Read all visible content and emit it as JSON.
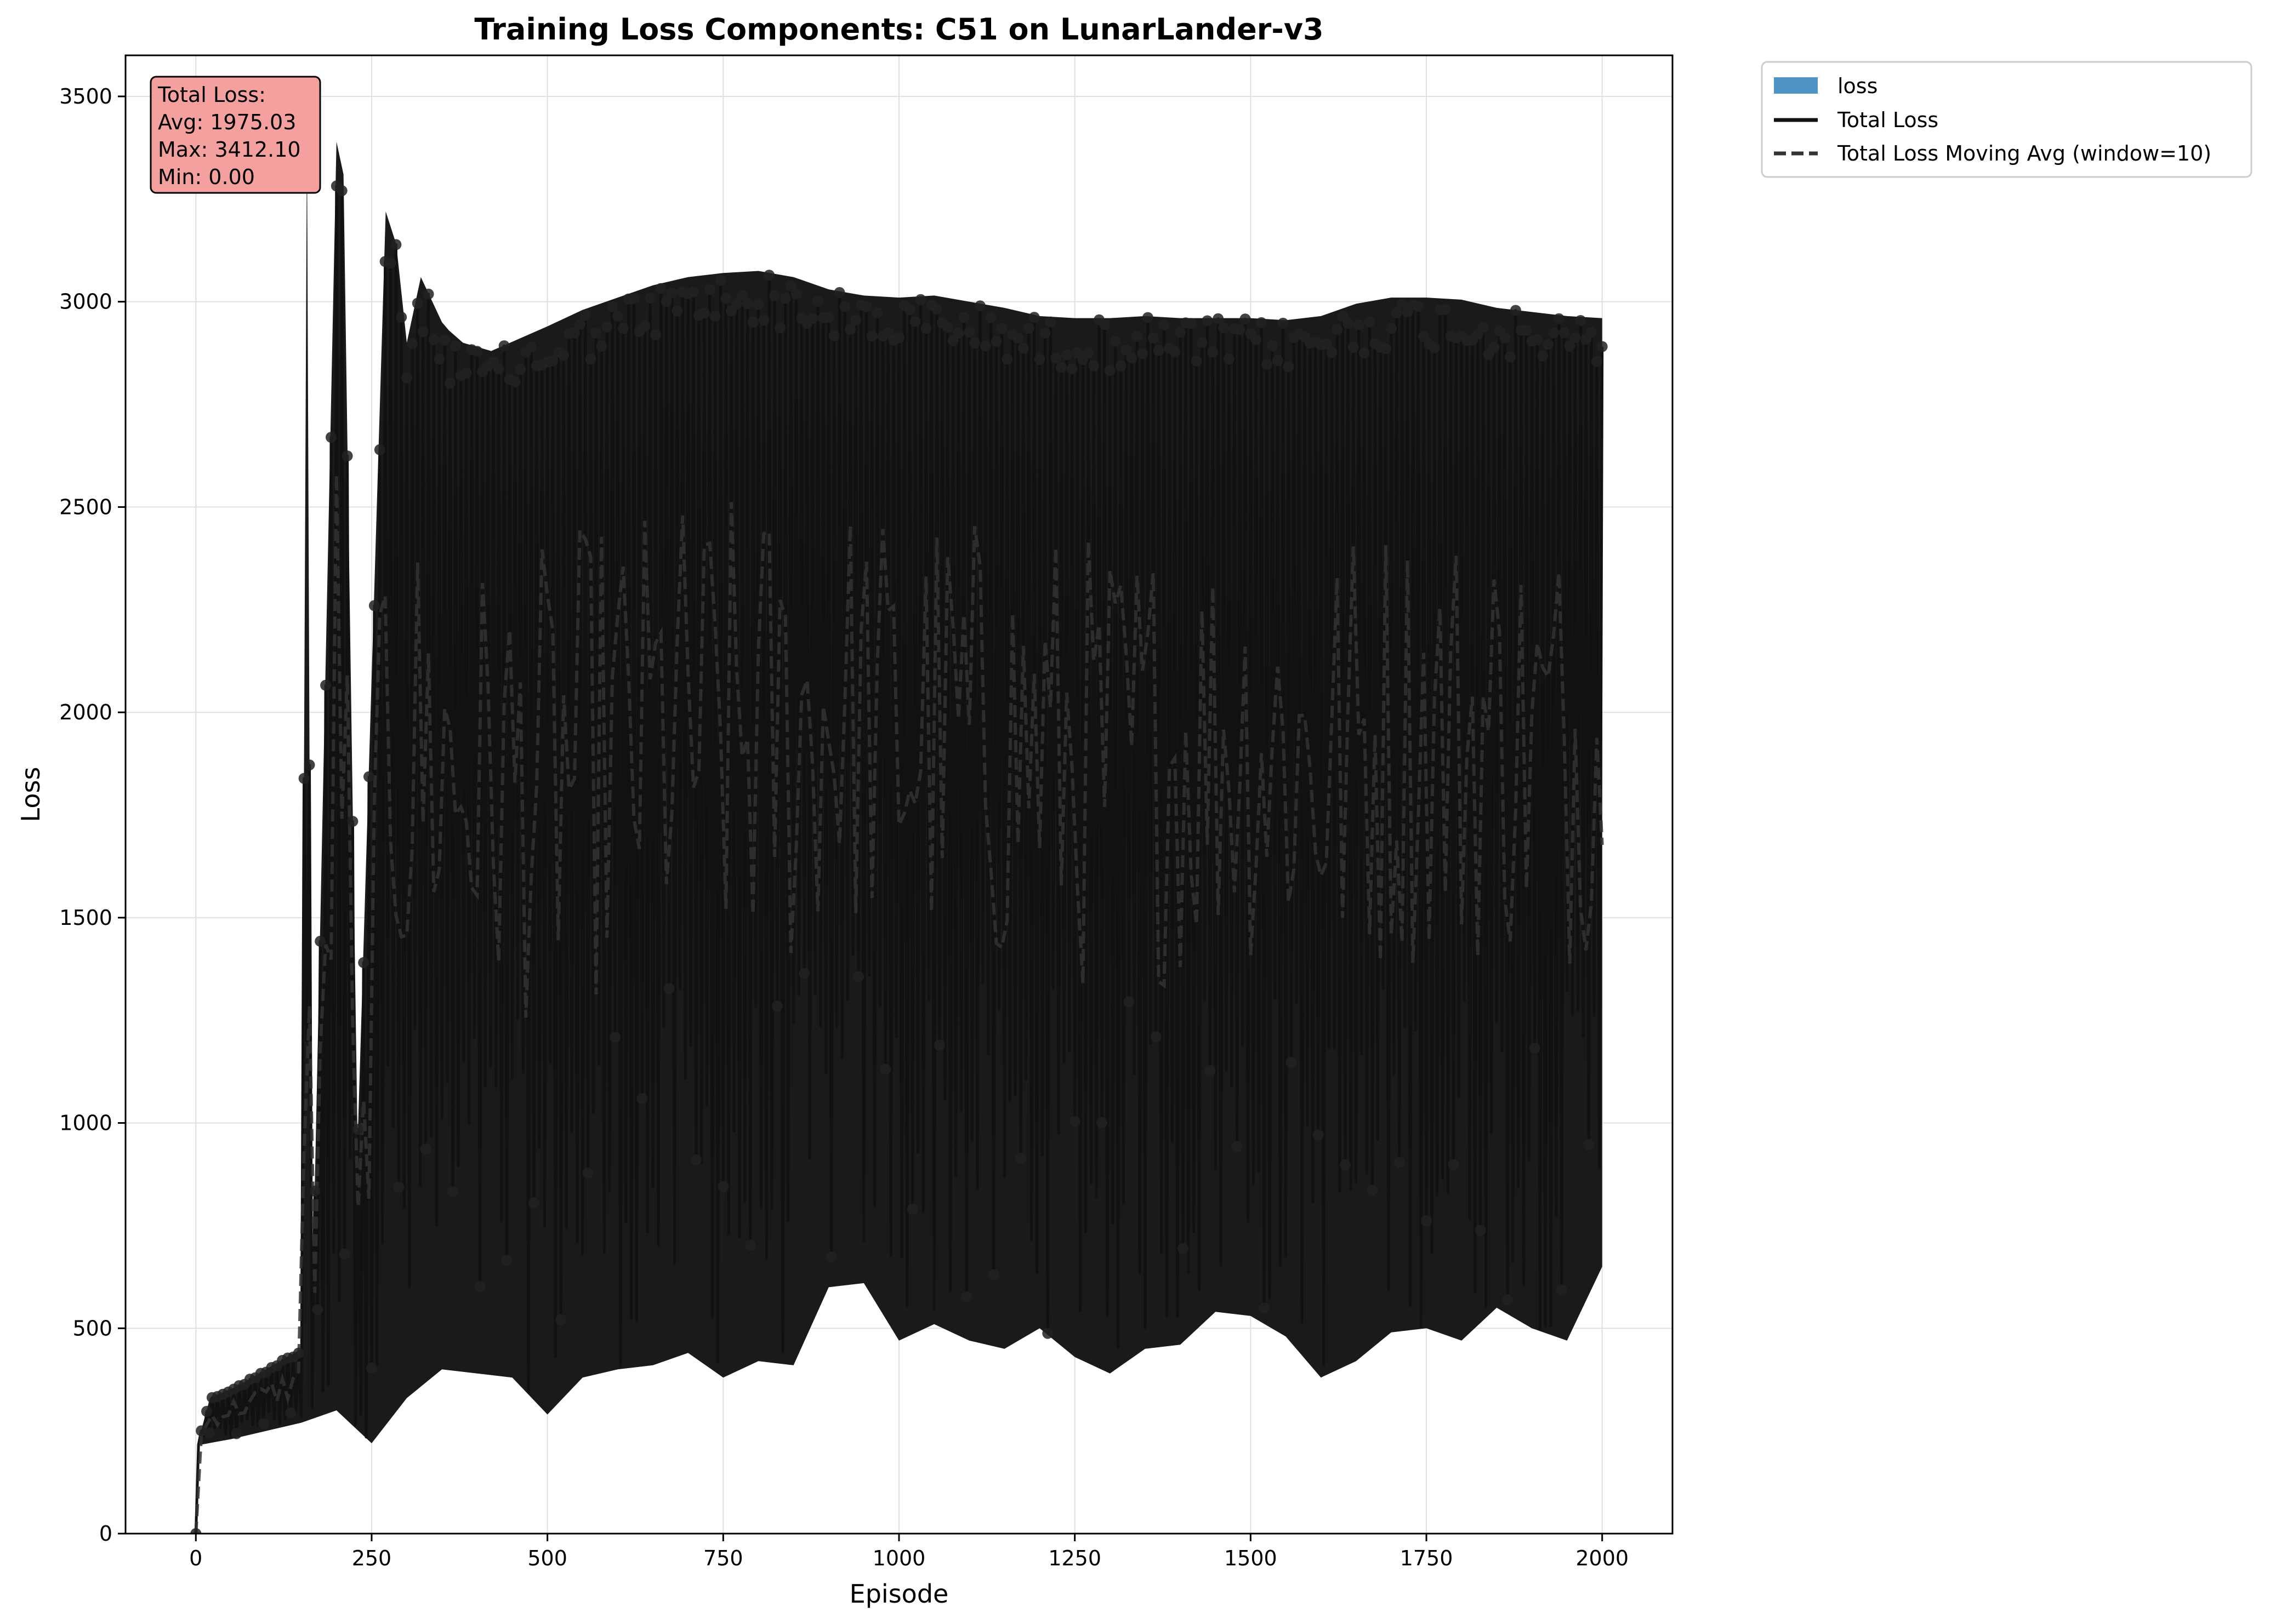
{
  "chart_data": {
    "type": "line",
    "title": "Training Loss Components: C51 on LunarLander-v3",
    "xlabel": "Episode",
    "ylabel": "Loss",
    "xlim": [
      -100,
      2100
    ],
    "ylim": [
      0,
      3600
    ],
    "xticks": [
      0,
      250,
      500,
      750,
      1000,
      1250,
      1500,
      1750,
      2000
    ],
    "yticks": [
      0,
      500,
      1000,
      1500,
      2000,
      2500,
      3000,
      3500
    ],
    "grid": true,
    "legend_position": "outside top-right",
    "legend": [
      {
        "label": "loss",
        "kind": "patch",
        "color": "#4f93c7"
      },
      {
        "label": "Total Loss",
        "kind": "solid-line",
        "color": "#111111"
      },
      {
        "label": "Total Loss Moving Avg (window=10)",
        "kind": "dashed-line",
        "color": "#333333"
      }
    ],
    "stats_box": {
      "lines": [
        "Total Loss:",
        "Avg: 1975.03",
        "Max: 3412.10",
        "Min: 0.00"
      ],
      "fill": "#f4a09f"
    },
    "series": [
      {
        "name": "Total Loss",
        "style": "solid",
        "color": "#111111",
        "x_range": [
          0,
          2000
        ],
        "envelope_upper": [
          [
            0,
            0
          ],
          [
            2,
            215
          ],
          [
            20,
            330
          ],
          [
            60,
            360
          ],
          [
            100,
            400
          ],
          [
            150,
            450
          ],
          [
            158,
            3412
          ],
          [
            165,
            500
          ],
          [
            200,
            3390
          ],
          [
            210,
            3310
          ],
          [
            230,
            950
          ],
          [
            270,
            3220
          ],
          [
            285,
            3140
          ],
          [
            300,
            2900
          ],
          [
            320,
            3060
          ],
          [
            350,
            2950
          ],
          [
            360,
            2930
          ],
          [
            380,
            2900
          ],
          [
            420,
            2880
          ],
          [
            460,
            2910
          ],
          [
            500,
            2940
          ],
          [
            550,
            2980
          ],
          [
            600,
            3010
          ],
          [
            650,
            3040
          ],
          [
            700,
            3060
          ],
          [
            750,
            3070
          ],
          [
            800,
            3075
          ],
          [
            850,
            3060
          ],
          [
            900,
            3030
          ],
          [
            950,
            3015
          ],
          [
            1000,
            3010
          ],
          [
            1050,
            3015
          ],
          [
            1100,
            3000
          ],
          [
            1150,
            2985
          ],
          [
            1200,
            2965
          ],
          [
            1250,
            2960
          ],
          [
            1300,
            2960
          ],
          [
            1350,
            2965
          ],
          [
            1400,
            2960
          ],
          [
            1450,
            2960
          ],
          [
            1500,
            2960
          ],
          [
            1550,
            2955
          ],
          [
            1600,
            2965
          ],
          [
            1650,
            2995
          ],
          [
            1700,
            3010
          ],
          [
            1750,
            3010
          ],
          [
            1800,
            3005
          ],
          [
            1850,
            2985
          ],
          [
            1900,
            2975
          ],
          [
            1950,
            2965
          ],
          [
            2000,
            2960
          ]
        ],
        "envelope_lower": [
          [
            0,
            0
          ],
          [
            2,
            215
          ],
          [
            50,
            230
          ],
          [
            100,
            250
          ],
          [
            150,
            270
          ],
          [
            200,
            300
          ],
          [
            250,
            220
          ],
          [
            300,
            330
          ],
          [
            350,
            400
          ],
          [
            400,
            390
          ],
          [
            450,
            380
          ],
          [
            500,
            290
          ],
          [
            550,
            380
          ],
          [
            600,
            400
          ],
          [
            650,
            410
          ],
          [
            700,
            440
          ],
          [
            750,
            380
          ],
          [
            800,
            420
          ],
          [
            850,
            410
          ],
          [
            900,
            600
          ],
          [
            950,
            610
          ],
          [
            1000,
            470
          ],
          [
            1050,
            510
          ],
          [
            1100,
            470
          ],
          [
            1150,
            450
          ],
          [
            1200,
            500
          ],
          [
            1250,
            430
          ],
          [
            1300,
            390
          ],
          [
            1350,
            450
          ],
          [
            1400,
            460
          ],
          [
            1450,
            540
          ],
          [
            1500,
            530
          ],
          [
            1550,
            480
          ],
          [
            1600,
            380
          ],
          [
            1650,
            420
          ],
          [
            1700,
            490
          ],
          [
            1750,
            500
          ],
          [
            1800,
            470
          ],
          [
            1850,
            550
          ],
          [
            1900,
            500
          ],
          [
            1950,
            470
          ],
          [
            2000,
            650
          ]
        ]
      },
      {
        "name": "Total Loss Moving Avg (window=10)",
        "style": "dashed",
        "color": "#333333",
        "x_range": [
          0,
          2000
        ]
      }
    ]
  }
}
